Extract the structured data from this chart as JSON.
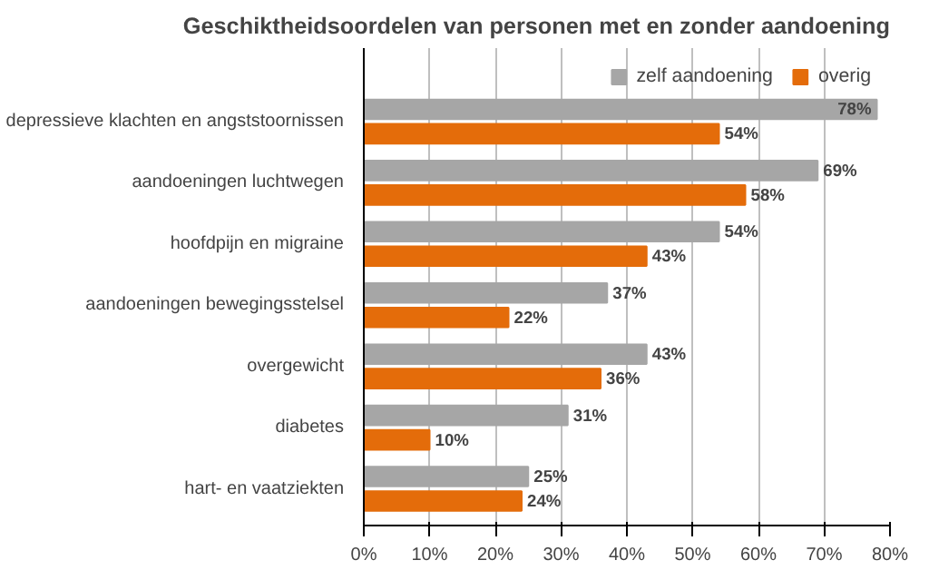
{
  "chart_data": {
    "type": "bar",
    "orientation": "horizontal",
    "title": "Geschiktheidsoordelen van personen met en zonder aandoening",
    "categories": [
      "depressieve klachten en angststoornissen",
      "aandoeningen luchtwegen",
      "hoofdpijn en migraine",
      "aandoeningen bewegingsstelsel",
      "overgewicht",
      "diabetes",
      "hart- en vaatziekten"
    ],
    "series": [
      {
        "name": "zelf aandoening",
        "color": "#a6a6a6",
        "values": [
          78,
          69,
          54,
          37,
          43,
          31,
          25
        ],
        "value_labels": [
          "78%",
          "69%",
          "54%",
          "37%",
          "43%",
          "31%",
          "25%"
        ]
      },
      {
        "name": "overig",
        "color": "#e46c0a",
        "values": [
          54,
          58,
          43,
          22,
          36,
          10,
          24
        ],
        "value_labels": [
          "54%",
          "58%",
          "43%",
          "22%",
          "36%",
          "10%",
          "24%"
        ]
      }
    ],
    "xlim": [
      0,
      80
    ],
    "xticks": [
      {
        "value": 0,
        "label": "0%"
      },
      {
        "value": 10,
        "label": "10%"
      },
      {
        "value": 20,
        "label": "20%"
      },
      {
        "value": 30,
        "label": "30%"
      },
      {
        "value": 40,
        "label": "40%"
      },
      {
        "value": 50,
        "label": "50%"
      },
      {
        "value": 60,
        "label": "60%"
      },
      {
        "value": 70,
        "label": "70%"
      },
      {
        "value": 80,
        "label": "80%"
      }
    ],
    "grid": "x",
    "legend": "top right"
  }
}
